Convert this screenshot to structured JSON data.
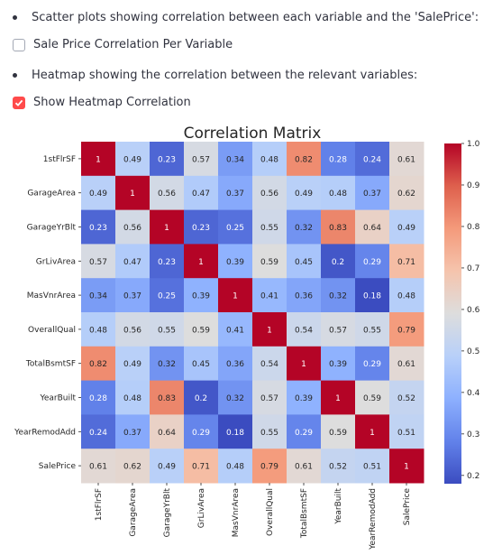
{
  "section": {
    "bullet1": "Scatter plots showing correlation between each variable and the 'SalePrice':",
    "checkbox1": {
      "label": "Sale Price Correlation Per Variable",
      "checked": false
    },
    "bullet2": "Heatmap showing the correlation between the relevant variables:",
    "checkbox2": {
      "label": "Show Heatmap Correlation",
      "checked": true
    }
  },
  "colors": {
    "accent": "#ff4b4b",
    "text": "#31333f"
  },
  "chart_data": {
    "type": "heatmap",
    "title": "Correlation Matrix",
    "variables": [
      "1stFlrSF",
      "GarageArea",
      "GarageYrBlt",
      "GrLivArea",
      "MasVnrArea",
      "OverallQual",
      "TotalBsmtSF",
      "YearBuilt",
      "YearRemodAdd",
      "SalePrice"
    ],
    "values": [
      [
        1,
        0.49,
        0.23,
        0.57,
        0.34,
        0.48,
        0.82,
        0.28,
        0.24,
        0.61
      ],
      [
        0.49,
        1,
        0.56,
        0.47,
        0.37,
        0.56,
        0.49,
        0.48,
        0.37,
        0.62
      ],
      [
        0.23,
        0.56,
        1,
        0.23,
        0.25,
        0.55,
        0.32,
        0.83,
        0.64,
        0.49
      ],
      [
        0.57,
        0.47,
        0.23,
        1,
        0.39,
        0.59,
        0.45,
        0.2,
        0.29,
        0.71
      ],
      [
        0.34,
        0.37,
        0.25,
        0.39,
        1,
        0.41,
        0.36,
        0.32,
        0.18,
        0.48
      ],
      [
        0.48,
        0.56,
        0.55,
        0.59,
        0.41,
        1,
        0.54,
        0.57,
        0.55,
        0.79
      ],
      [
        0.82,
        0.49,
        0.32,
        0.45,
        0.36,
        0.54,
        1,
        0.39,
        0.29,
        0.61
      ],
      [
        0.28,
        0.48,
        0.83,
        0.2,
        0.32,
        0.57,
        0.39,
        1,
        0.59,
        0.52
      ],
      [
        0.24,
        0.37,
        0.64,
        0.29,
        0.18,
        0.55,
        0.29,
        0.59,
        1,
        0.51
      ],
      [
        0.61,
        0.62,
        0.49,
        0.71,
        0.48,
        0.79,
        0.61,
        0.52,
        0.51,
        1
      ]
    ],
    "colorbar": {
      "min": 0.18,
      "max": 1.0,
      "ticks": [
        "1.0",
        "0.9",
        "0.8",
        "0.7",
        "0.6",
        "0.5",
        "0.4",
        "0.3",
        "0.2"
      ],
      "colormap": "coolwarm"
    }
  }
}
